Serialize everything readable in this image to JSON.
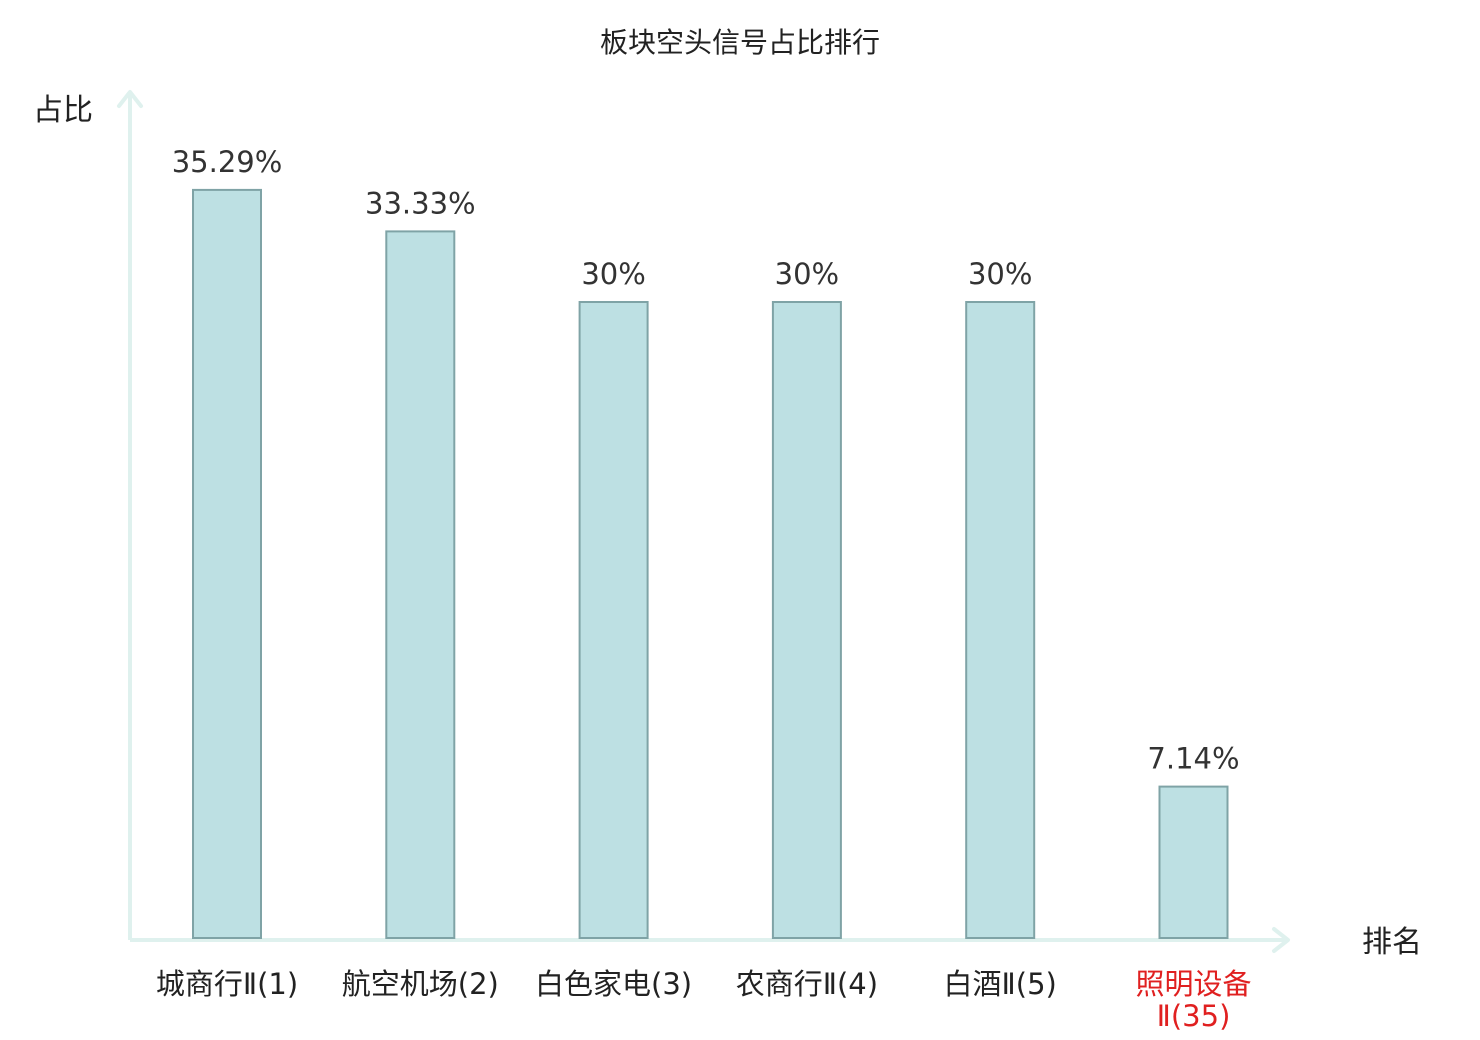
{
  "chart_data": {
    "type": "bar",
    "title": "板块空头信号占比排行",
    "ylabel": "占比",
    "xlabel": "排名",
    "categories": [
      [
        "城商行Ⅱ(1)"
      ],
      [
        "航空机场(2)"
      ],
      [
        "白色家电(3)"
      ],
      [
        "农商行Ⅱ(4)"
      ],
      [
        "白酒Ⅱ(5)"
      ],
      [
        "照明设备",
        "Ⅱ(35)"
      ]
    ],
    "values": [
      35.29,
      33.33,
      30,
      30,
      30,
      7.14
    ],
    "value_labels": [
      "35.29%",
      "33.33%",
      "30%",
      "30%",
      "30%",
      "7.14%"
    ],
    "highlight_index": 5,
    "ylim": [
      0,
      40
    ],
    "grid": false,
    "colors": {
      "bar_fill": "#bde0e3",
      "bar_stroke": "#7fa3a6",
      "axis": "#dff1ee",
      "text": "#222222",
      "highlight": "#e02020"
    }
  }
}
